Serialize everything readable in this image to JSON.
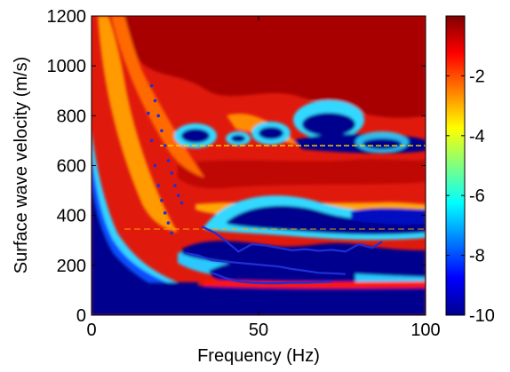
{
  "chart_data": {
    "type": "heatmap",
    "title": "",
    "xlabel": "Frequency (Hz)",
    "ylabel": "Surface wave velocity (m/s)",
    "xlim": [
      0,
      100
    ],
    "ylim": [
      0,
      1200
    ],
    "xticks": [
      0,
      50,
      100
    ],
    "yticks": [
      0,
      200,
      400,
      600,
      800,
      1000,
      1200
    ],
    "grid": false,
    "colormap": "jet",
    "colorbar": {
      "range": [
        -10,
        0
      ],
      "ticks": [
        -10,
        -8,
        -6,
        -4,
        -2
      ]
    },
    "overlays": [
      {
        "style": "dotted",
        "color": "#1f2fd6",
        "x": [
          18,
          19,
          20,
          21,
          22,
          23,
          24,
          25,
          26,
          27
        ],
        "y": [
          920,
          860,
          800,
          740,
          680,
          620,
          570,
          520,
          480,
          450
        ]
      },
      {
        "style": "dotted",
        "color": "#1f2fd6",
        "x": [
          17,
          18,
          19,
          20,
          21,
          22,
          23,
          24
        ],
        "y": [
          810,
          700,
          600,
          520,
          460,
          410,
          370,
          330
        ]
      },
      {
        "style": "solid",
        "color": "#1f2fd6",
        "x": [
          33,
          37,
          40,
          44,
          48,
          52,
          56,
          60,
          64,
          68,
          72,
          76,
          80,
          84,
          87
        ],
        "y": [
          355,
          330,
          300,
          255,
          285,
          280,
          270,
          260,
          265,
          258,
          262,
          255,
          285,
          270,
          295
        ]
      },
      {
        "style": "solid",
        "color": "#1f2fd6",
        "x": [
          28,
          32,
          36,
          40,
          44,
          48,
          52,
          56,
          60,
          64,
          68,
          72,
          76
        ],
        "y": [
          250,
          240,
          220,
          215,
          210,
          205,
          200,
          195,
          185,
          178,
          170,
          168,
          165
        ]
      },
      {
        "style": "solid",
        "color": "#1f2fd6",
        "x": [
          36,
          40,
          44,
          48,
          52,
          56,
          60,
          64,
          68,
          72
        ],
        "y": [
          170,
          150,
          135,
          130,
          128,
          128,
          130,
          130,
          132,
          135
        ]
      }
    ]
  }
}
